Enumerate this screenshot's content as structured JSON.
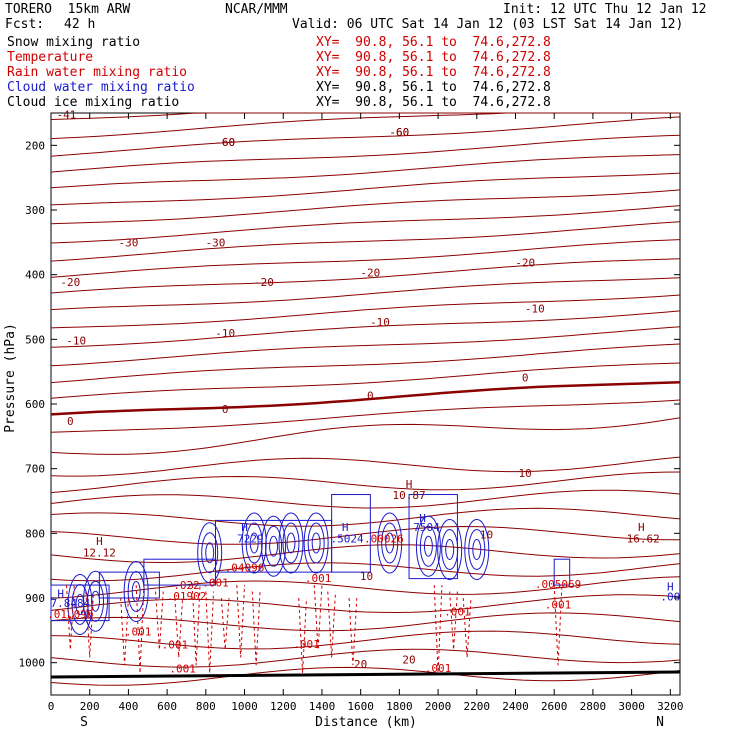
{
  "header": {
    "model": "TORERO  15km ARW",
    "center": "NCAR/MMM",
    "init": "Init: 12 UTC Thu 12 Jan 12",
    "fcst_label": "Fcst:",
    "fcst_value": "42 h",
    "valid": "Valid: 06 UTC Sat 14 Jan 12 (03 LST Sat 14 Jan 12)"
  },
  "fields": [
    {
      "name": "Snow mixing ratio",
      "xy": "XY=  90.8, 56.1 to  74.6,272.8",
      "color": "#000000"
    },
    {
      "name": "Temperature",
      "xy": "XY=  90.8, 56.1 to  74.6,272.8",
      "color": "#d00000"
    },
    {
      "name": "Rain water mixing ratio",
      "xy": "XY=  90.8, 56.1 to  74.6,272.8",
      "color": "#d00000"
    },
    {
      "name": "Cloud water mixing ratio",
      "xy": "XY=  90.8, 56.1 to  74.6,272.8",
      "color": "#1a1acc"
    },
    {
      "name": "Cloud ice mixing ratio",
      "xy": "XY=  90.8, 56.1 to  74.6,272.8",
      "color": "#000000"
    }
  ],
  "chart_data": {
    "type": "cross-section contour",
    "xlabel": "Distance (km)",
    "ylabel": "Pressure (hPa)",
    "xlim": [
      0,
      3250
    ],
    "ylim": [
      1050,
      150
    ],
    "x_ticks": [
      "0",
      "200",
      "400",
      "600",
      "800",
      "1000",
      "1200",
      "1400",
      "1600",
      "1800",
      "2000",
      "2200",
      "2400",
      "2600",
      "2800",
      "3000",
      "3200"
    ],
    "y_ticks": [
      "200",
      "300",
      "400",
      "500",
      "600",
      "700",
      "800",
      "900",
      "1000"
    ],
    "endpoints": {
      "left": "S",
      "right": "N"
    },
    "temperature_contours": [
      {
        "label": "-60",
        "at_x": [
          900,
          1800
        ],
        "pressure": [
          195,
          179
        ]
      },
      {
        "label": "-30",
        "at_x": [
          400,
          850
        ],
        "pressure": [
          350,
          350
        ]
      },
      {
        "label": "-20",
        "at_x": [
          100,
          1100,
          1650,
          2450
        ],
        "pressure": [
          411,
          411,
          397,
          381
        ]
      },
      {
        "label": "-10",
        "at_x": [
          130,
          900,
          1700,
          2500
        ],
        "pressure": [
          502,
          490,
          473,
          452
        ]
      },
      {
        "label": "0",
        "at_x": [
          100,
          900,
          1650,
          2450
        ],
        "pressure": [
          626,
          608,
          587,
          559
        ]
      },
      {
        "label": "10",
        "at_x": [
          1630,
          2450,
          2250
        ],
        "pressure": [
          866,
          707,
          802
        ]
      },
      {
        "label": "20",
        "at_x": [
          1600,
          1850
        ],
        "pressure": [
          1002,
          995
        ]
      },
      {
        "label": "-41",
        "at_x": [
          80
        ],
        "pressure": [
          152
        ]
      }
    ],
    "annotations": [
      {
        "text": "H",
        "x": 250,
        "p": 812
      },
      {
        "text": "12.12",
        "x": 250,
        "p": 830
      },
      {
        "text": "H",
        "x": 1850,
        "p": 724
      },
      {
        "text": "10.87",
        "x": 1850,
        "p": 741
      },
      {
        "text": "H",
        "x": 3050,
        "p": 790
      },
      {
        "text": "16.62",
        "x": 3060,
        "p": 808
      },
      {
        "text": "H",
        "x": 3200,
        "p": 882
      },
      {
        "text": ".00",
        "x": 3200,
        "p": 898
      },
      {
        "text": "H",
        "x": 50,
        "p": 893
      },
      {
        "text": "7.8484",
        "x": 100,
        "p": 908
      },
      {
        "text": ".01.096",
        "x": 100,
        "p": 925
      },
      {
        "text": ".022",
        "x": 700,
        "p": 880
      },
      {
        "text": ".01902",
        "x": 700,
        "p": 897
      },
      {
        "text": "H",
        "x": 1000,
        "p": 790
      },
      {
        "text": "7229",
        "x": 1030,
        "p": 808
      },
      {
        "text": ".04096",
        "x": 1000,
        "p": 853
      },
      {
        "text": "H",
        "x": 1520,
        "p": 790
      },
      {
        "text": ".5024",
        "x": 1530,
        "p": 808
      },
      {
        "text": ".00026",
        "x": 1720,
        "p": 808
      },
      {
        "text": "H",
        "x": 1920,
        "p": 776
      },
      {
        "text": "7504",
        "x": 1940,
        "p": 790
      },
      {
        "text": ".005069",
        "x": 2620,
        "p": 878
      },
      {
        "text": ".001",
        "x": 450,
        "p": 952
      },
      {
        "text": ".001",
        "x": 640,
        "p": 972
      },
      {
        "text": ".001",
        "x": 850,
        "p": 876
      },
      {
        "text": ".001",
        "x": 1380,
        "p": 869
      },
      {
        "text": ".001",
        "x": 1320,
        "p": 971
      },
      {
        "text": ".001",
        "x": 2000,
        "p": 1008
      },
      {
        "text": ".001",
        "x": 2100,
        "p": 921
      },
      {
        "text": ".001",
        "x": 2620,
        "p": 910
      },
      {
        "text": ".001",
        "x": 680,
        "p": 1009
      },
      {
        "text": "-60",
        "x": 900,
        "p": 195
      },
      {
        "text": "-60",
        "x": 1800,
        "p": 179
      }
    ]
  }
}
